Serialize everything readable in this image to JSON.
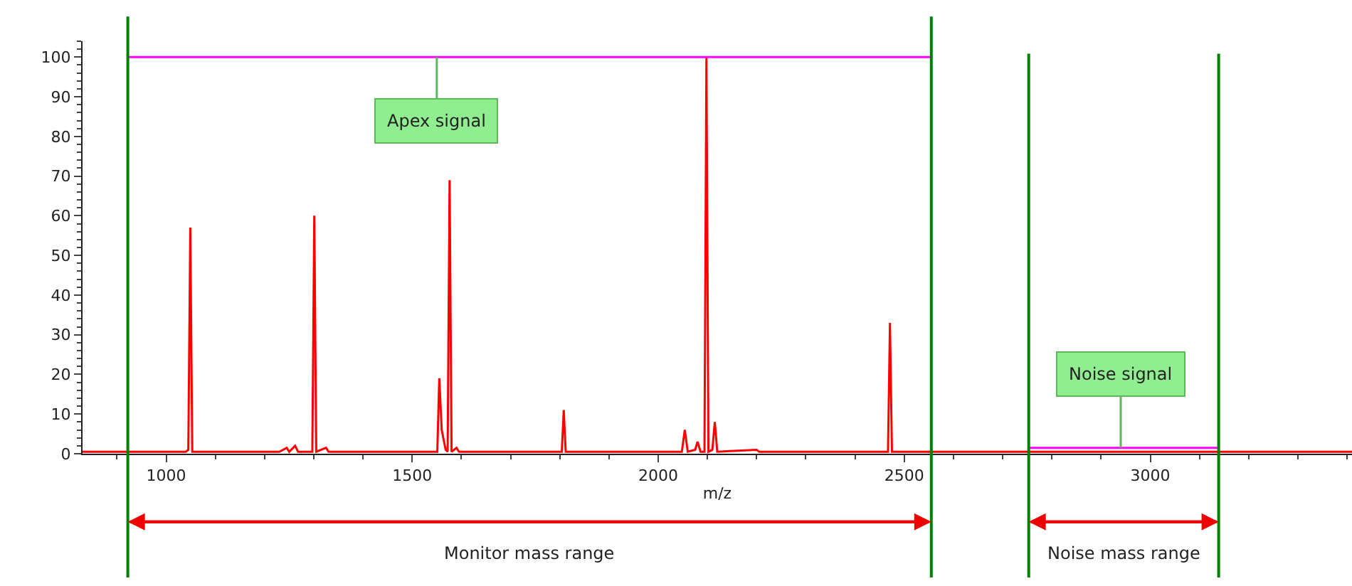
{
  "chart_data": {
    "type": "line",
    "xlabel": "m/z",
    "xlim": [
      830,
      3410
    ],
    "ylim": [
      0,
      104
    ],
    "xticks": [
      1000,
      1500,
      2000,
      2500,
      3000
    ],
    "yticks": [
      0,
      10,
      20,
      30,
      40,
      50,
      60,
      70,
      80,
      90,
      100
    ],
    "marker": "none",
    "line_style": "solid",
    "series": [
      {
        "color": "#ff0000",
        "x": [
          830,
          1040,
          1045,
          1049,
          1053,
          1230,
          1245,
          1250,
          1262,
          1268,
          1297,
          1301,
          1305,
          1325,
          1330,
          1551,
          1555,
          1560,
          1568,
          1572,
          1576,
          1580,
          1590,
          1595,
          1804,
          1808,
          1812,
          2048,
          2054,
          2060,
          2075,
          2080,
          2086,
          2094,
          2098,
          2102,
          2110,
          2115,
          2120,
          2200,
          2205,
          2467,
          2471,
          2475,
          3410
        ],
        "values": [
          0.5,
          0.5,
          1,
          57,
          0.5,
          0.5,
          1.5,
          0.5,
          2,
          0.5,
          0.5,
          60,
          0.5,
          1.5,
          0.5,
          0.5,
          19,
          6,
          1,
          0.5,
          69,
          0.5,
          1.5,
          0.5,
          0.5,
          11,
          0.5,
          0.5,
          6,
          0.5,
          1,
          3,
          0.5,
          0.5,
          100,
          0.5,
          1,
          8,
          0.5,
          1,
          0.5,
          0.5,
          33,
          0.5,
          0.5
        ]
      },
      {
        "color": "#ff00ff",
        "x": [
          922,
          2555
        ],
        "values": [
          100,
          100
        ]
      },
      {
        "color": "#ff00ff",
        "x": [
          2753,
          3139
        ],
        "values": [
          1.5,
          1.5
        ]
      }
    ],
    "ref_lines": [
      {
        "axis": "x",
        "value": 922,
        "color": "#008000"
      },
      {
        "axis": "x",
        "value": 2555,
        "color": "#008000"
      },
      {
        "axis": "x",
        "value": 2753,
        "color": "#008000"
      },
      {
        "axis": "x",
        "value": 3139,
        "color": "#008000"
      }
    ],
    "annotations": [
      {
        "text": "Apex signal",
        "x": 1550,
        "y": 100
      },
      {
        "text": "Noise signal",
        "x": 2940,
        "y": 1.5
      },
      "Monitor mass range",
      "Noise mass range"
    ]
  }
}
